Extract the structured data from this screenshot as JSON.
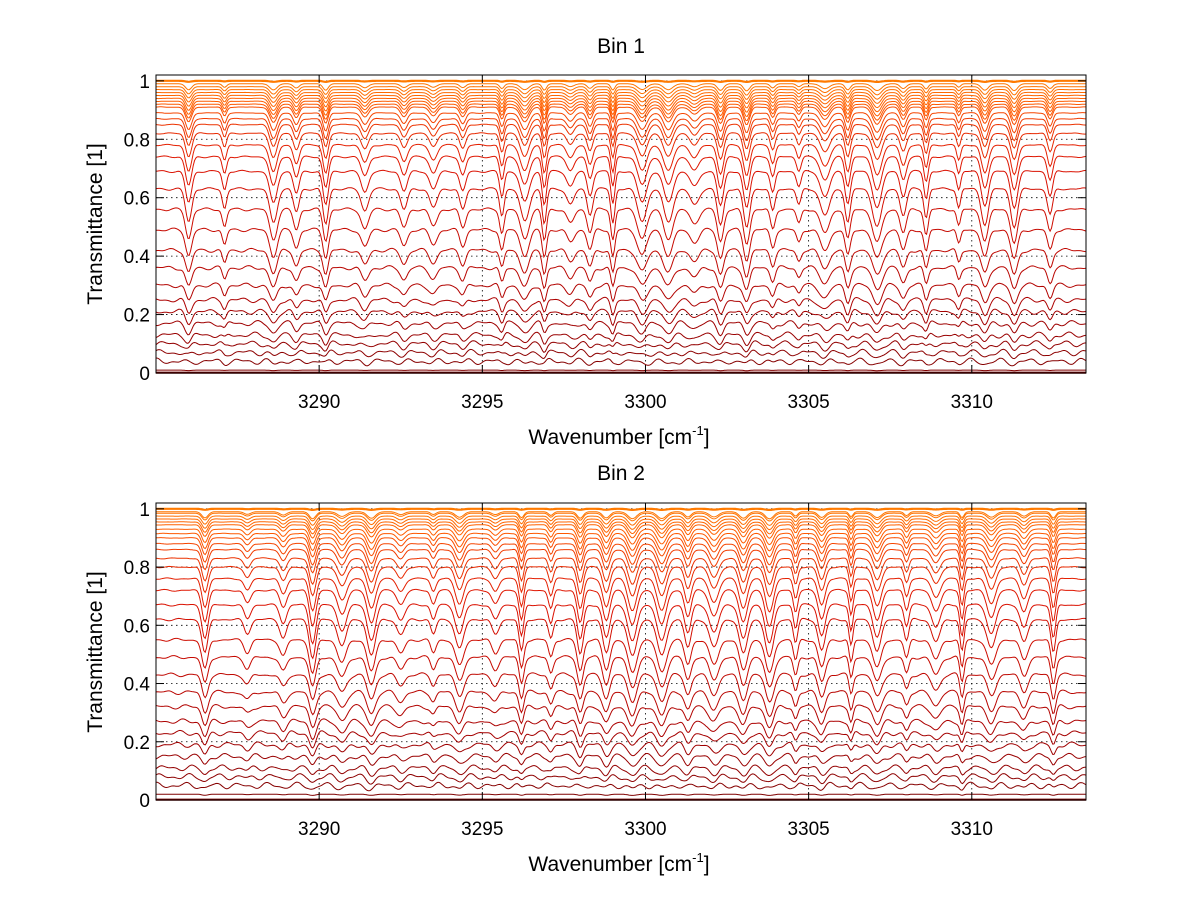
{
  "chart_data": [
    {
      "type": "line",
      "title": "Bin 1",
      "xlabel": "Wavenumber [cm",
      "xlabel_sup": "-1",
      "xlabel_close": "]",
      "ylabel": "Transmittance [1]",
      "xlim": [
        3285,
        3313.5
      ],
      "ylim": [
        0,
        1.02
      ],
      "xticks": [
        3290,
        3295,
        3300,
        3305,
        3310
      ],
      "xtick_labels": [
        "3290",
        "3295",
        "3300",
        "3305",
        "3310"
      ],
      "yticks": [
        0,
        0.2,
        0.4,
        0.6,
        0.8,
        1
      ],
      "ytick_labels": [
        "0",
        "0.2",
        "0.4",
        "0.6",
        "0.8",
        "1"
      ],
      "grid": true,
      "series_base_transmittance": [
        1.0,
        0.99,
        0.98,
        0.97,
        0.96,
        0.95,
        0.94,
        0.93,
        0.92,
        0.91,
        0.89,
        0.87,
        0.85,
        0.82,
        0.78,
        0.74,
        0.69,
        0.63,
        0.56,
        0.49,
        0.42,
        0.36,
        0.3,
        0.25,
        0.21,
        0.17,
        0.13,
        0.1,
        0.07,
        0.04,
        0.01,
        0.0
      ],
      "absorption_lines_cm-1": [
        3286.0,
        3287.1,
        3288.6,
        3289.3,
        3290.2,
        3291.4,
        3292.6,
        3293.5,
        3294.4,
        3295.6,
        3296.3,
        3296.9,
        3297.7,
        3298.3,
        3299.0,
        3299.9,
        3300.7,
        3301.5,
        3302.3,
        3303.1,
        3303.9,
        3304.7,
        3305.5,
        3306.2,
        3307.1,
        3307.9,
        3308.6,
        3309.6,
        3310.4,
        3311.3,
        3312.4
      ],
      "line_colors": [
        "#ff7a00",
        "#ff5a00",
        "#dd1100",
        "#aa0000",
        "#7a0000"
      ]
    },
    {
      "type": "line",
      "title": "Bin 2",
      "xlabel": "Wavenumber [cm",
      "xlabel_sup": "-1",
      "xlabel_close": "]",
      "ylabel": "Transmittance [1]",
      "xlim": [
        3285,
        3313.5
      ],
      "ylim": [
        0,
        1.02
      ],
      "xticks": [
        3290,
        3295,
        3300,
        3305,
        3310
      ],
      "xtick_labels": [
        "3290",
        "3295",
        "3300",
        "3305",
        "3310"
      ],
      "yticks": [
        0,
        0.2,
        0.4,
        0.6,
        0.8,
        1
      ],
      "ytick_labels": [
        "0",
        "0.2",
        "0.4",
        "0.6",
        "0.8",
        "1"
      ],
      "grid": true,
      "series_base_transmittance": [
        1.0,
        0.99,
        0.985,
        0.975,
        0.965,
        0.955,
        0.945,
        0.93,
        0.915,
        0.9,
        0.88,
        0.86,
        0.83,
        0.8,
        0.76,
        0.72,
        0.67,
        0.62,
        0.55,
        0.49,
        0.43,
        0.37,
        0.32,
        0.27,
        0.23,
        0.19,
        0.15,
        0.11,
        0.08,
        0.05,
        0.02,
        0.0
      ],
      "absorption_lines_cm-1": [
        3286.5,
        3287.8,
        3288.9,
        3289.8,
        3290.7,
        3291.6,
        3292.5,
        3293.5,
        3294.3,
        3295.4,
        3296.2,
        3297.1,
        3298.0,
        3298.8,
        3299.6,
        3300.5,
        3301.3,
        3302.1,
        3303.0,
        3303.8,
        3304.6,
        3305.4,
        3306.3,
        3307.1,
        3308.0,
        3308.9,
        3309.7,
        3310.6,
        3311.6,
        3312.5
      ],
      "line_colors": [
        "#ff7a00",
        "#ff5a00",
        "#dd1100",
        "#aa0000",
        "#7a0000"
      ]
    }
  ]
}
